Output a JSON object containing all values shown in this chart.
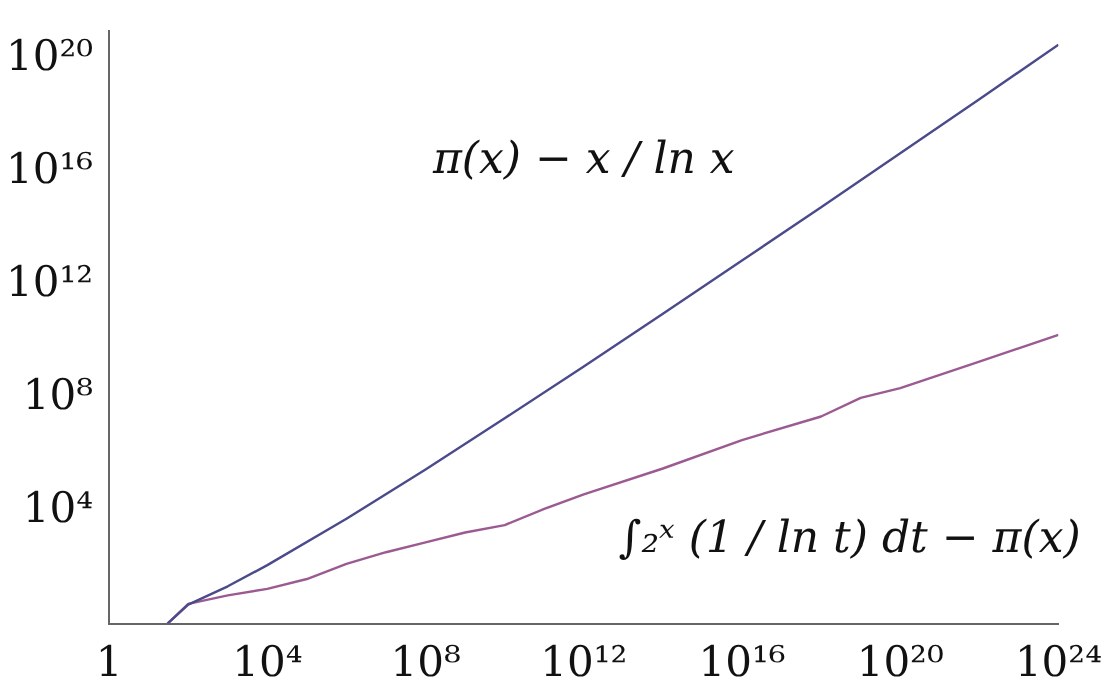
{
  "chart_data": {
    "type": "line",
    "log": "xy",
    "grid": false,
    "marker": "none",
    "line_style": "solid",
    "xlim": [
      1,
      1e+24
    ],
    "ylim": [
      1,
      1e+21
    ],
    "xticks": [
      1,
      {
        "value": 10000.0,
        "label": "10⁴"
      },
      {
        "value": 100000000.0,
        "label": "10⁸"
      },
      {
        "value": 1000000000000.0,
        "label": "10¹²"
      },
      {
        "value": 1e+16,
        "label": "10¹⁶"
      },
      {
        "value": 1e+20,
        "label": "10²⁰"
      },
      {
        "value": 1e+24,
        "label": "10²⁴"
      }
    ],
    "yticks": [
      {
        "value": 10000.0,
        "label": "10⁴"
      },
      {
        "value": 100000000.0,
        "label": "10⁸"
      },
      {
        "value": 1000000000000.0,
        "label": "10¹²"
      },
      {
        "value": 1e+16,
        "label": "10¹⁶"
      },
      {
        "value": 1e+20,
        "label": "10²⁰"
      }
    ],
    "series": [
      {
        "color": "#4b4b8c",
        "x": [
          30,
          100,
          1000,
          10000,
          1000000.0,
          100000000.0,
          10000000000.0,
          1000000000000.0,
          100000000000000.0,
          1e+16,
          1e+18,
          1e+20,
          1e+22,
          1e+24
        ],
        "values": [
          1,
          4.7,
          21,
          118,
          5200,
          290000,
          19000000.0,
          1300000000.0,
          96000000000.0,
          7400000000000.0,
          580000000000000.0,
          4.7e+16,
          3.9e+18,
          3.3e+20
        ]
      },
      {
        "color": "#9b5b92",
        "x": [
          30,
          100,
          1000,
          10000,
          100000.0,
          1000000.0,
          10000000.0,
          100000000.0,
          1000000000.0,
          10000000000.0,
          100000000000.0,
          1000000000000.0,
          100000000000000.0,
          1e+16,
          1e+18,
          1e+19,
          1e+20,
          1e+22,
          1e+24
        ],
        "values": [
          1,
          5,
          10,
          17,
          38,
          130,
          339,
          754,
          1701,
          3104,
          11588,
          38263,
          314890,
          3214632,
          21949555,
          99877775,
          222744644,
          1932355208,
          17146907278
        ]
      }
    ],
    "annotations": [
      "π(x) − x / ln x",
      "∫₂ˣ (1 / ln t) dt − π(x)"
    ]
  }
}
